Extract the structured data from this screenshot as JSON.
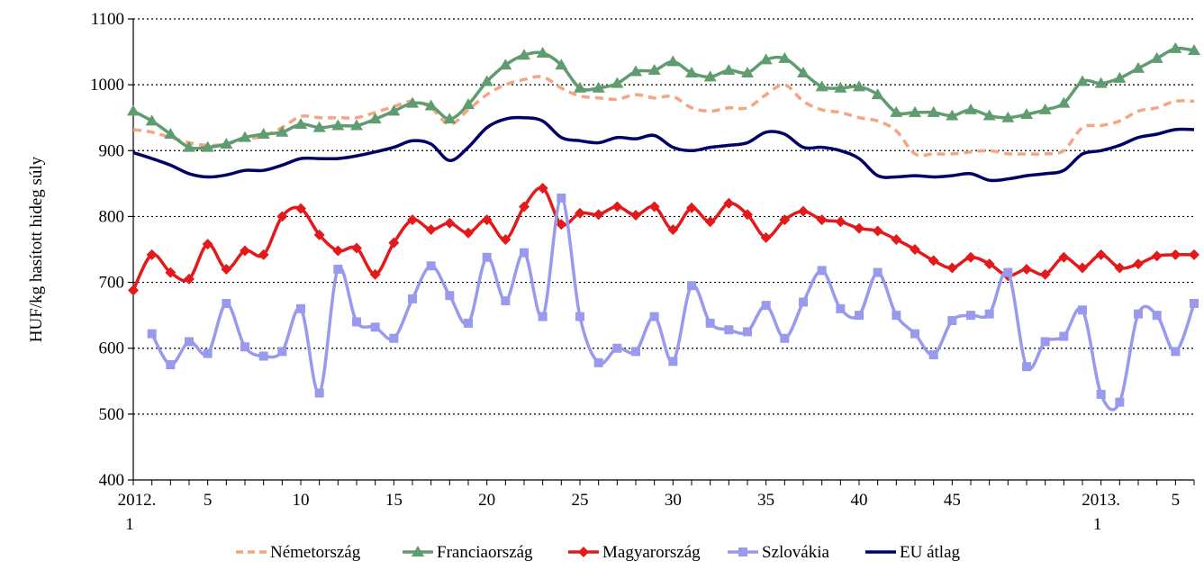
{
  "chart_data": {
    "type": "line",
    "ylabel": "HUF/kg hasított hideg súly",
    "ylim": [
      400,
      1100
    ],
    "yticks": [
      400,
      500,
      600,
      700,
      800,
      900,
      1000,
      1100
    ],
    "grid": "horizontal dotted",
    "legend_position": "bottom",
    "x_tick_labels": [
      {
        "week": 1,
        "text": "2012."
      },
      {
        "week": 5,
        "text": "5"
      },
      {
        "week": 10,
        "text": "10"
      },
      {
        "week": 15,
        "text": "15"
      },
      {
        "week": 20,
        "text": "20"
      },
      {
        "week": 25,
        "text": "25"
      },
      {
        "week": 30,
        "text": "30"
      },
      {
        "week": 35,
        "text": "35"
      },
      {
        "week": 40,
        "text": "40"
      },
      {
        "week": 45,
        "text": "45"
      },
      {
        "week": 53,
        "text": "2013."
      },
      {
        "week": 57,
        "text": "5"
      }
    ],
    "x_sublabels": [
      {
        "week": 1,
        "text": "1"
      },
      {
        "week": 53,
        "text": "1"
      }
    ],
    "x": [
      1,
      2,
      3,
      4,
      5,
      6,
      7,
      8,
      9,
      10,
      11,
      12,
      13,
      14,
      15,
      16,
      17,
      18,
      19,
      20,
      21,
      22,
      23,
      24,
      25,
      26,
      27,
      28,
      29,
      30,
      31,
      32,
      33,
      34,
      35,
      36,
      37,
      38,
      39,
      40,
      41,
      42,
      43,
      44,
      45,
      46,
      47,
      48,
      49,
      50,
      51,
      52,
      53,
      54,
      55,
      56,
      57,
      58
    ],
    "series": [
      {
        "name": "Németország",
        "color": "#F4A582",
        "style": "dashed",
        "marker": "none",
        "values": [
          932,
          928,
          920,
          912,
          908,
          910,
          917,
          922,
          935,
          952,
          950,
          950,
          950,
          958,
          967,
          975,
          965,
          940,
          962,
          985,
          1000,
          1008,
          1012,
          995,
          983,
          980,
          978,
          985,
          980,
          982,
          965,
          960,
          965,
          965,
          985,
          1000,
          975,
          962,
          958,
          950,
          945,
          930,
          895,
          895,
          895,
          898,
          900,
          895,
          895,
          895,
          900,
          935,
          938,
          945,
          960,
          965,
          975,
          975
        ]
      },
      {
        "name": "Franciaország",
        "color": "#5F9C6F",
        "style": "solid",
        "marker": "triangle",
        "values": [
          960,
          945,
          925,
          905,
          905,
          910,
          920,
          925,
          928,
          940,
          935,
          938,
          938,
          948,
          960,
          972,
          968,
          948,
          970,
          1005,
          1030,
          1045,
          1048,
          1030,
          995,
          995,
          1002,
          1020,
          1022,
          1035,
          1018,
          1012,
          1022,
          1018,
          1038,
          1040,
          1018,
          997,
          995,
          997,
          985,
          958,
          958,
          958,
          953,
          962,
          953,
          950,
          955,
          962,
          972,
          1005,
          1002,
          1010,
          1025,
          1040,
          1055,
          1052
        ]
      },
      {
        "name": "Magyarország",
        "color": "#E31A1C",
        "style": "solid",
        "marker": "diamond",
        "values": [
          688,
          742,
          715,
          705,
          758,
          720,
          748,
          742,
          800,
          812,
          772,
          748,
          752,
          712,
          760,
          795,
          780,
          790,
          775,
          795,
          765,
          815,
          843,
          788,
          805,
          803,
          815,
          802,
          815,
          780,
          813,
          792,
          820,
          803,
          768,
          795,
          808,
          795,
          792,
          782,
          778,
          765,
          750,
          733,
          722,
          738,
          728,
          710,
          720,
          712,
          738,
          722,
          742,
          722,
          728,
          740,
          742,
          742
        ]
      },
      {
        "name": "Szlovákia",
        "color": "#9999EE",
        "style": "solid",
        "marker": "square",
        "values": [
          null,
          622,
          575,
          610,
          592,
          668,
          602,
          588,
          595,
          660,
          532,
          720,
          640,
          632,
          615,
          675,
          725,
          680,
          638,
          738,
          672,
          745,
          648,
          828,
          648,
          578,
          600,
          595,
          648,
          580,
          695,
          638,
          628,
          625,
          665,
          615,
          670,
          718,
          660,
          650,
          715,
          650,
          622,
          590,
          642,
          650,
          652,
          715,
          572,
          610,
          618,
          658,
          530,
          518,
          652,
          650,
          595,
          668
        ]
      },
      {
        "name": "EU átlag",
        "color": "#000066",
        "style": "solid",
        "marker": "none",
        "values": [
          897,
          888,
          878,
          865,
          860,
          863,
          870,
          870,
          878,
          888,
          888,
          888,
          892,
          898,
          905,
          915,
          910,
          885,
          905,
          935,
          948,
          950,
          945,
          920,
          915,
          912,
          920,
          918,
          923,
          905,
          900,
          905,
          908,
          912,
          928,
          925,
          905,
          905,
          900,
          888,
          862,
          860,
          862,
          860,
          862,
          865,
          855,
          857,
          862,
          865,
          870,
          895,
          900,
          908,
          920,
          925,
          932,
          932
        ]
      }
    ]
  }
}
